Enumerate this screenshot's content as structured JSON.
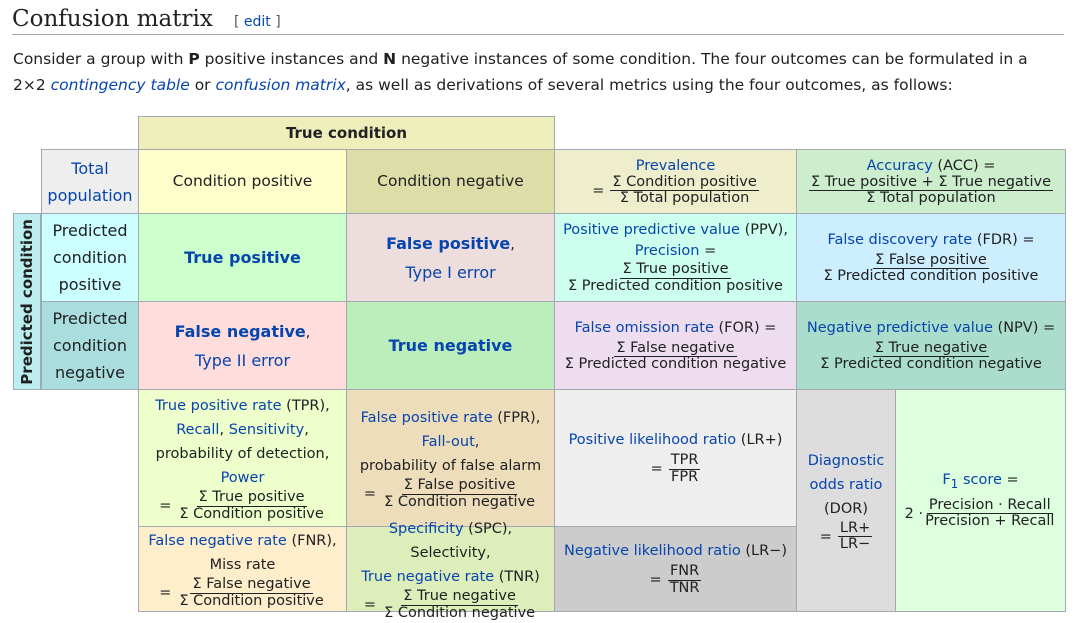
{
  "heading": {
    "title": "Confusion matrix",
    "edit_open": "[ ",
    "edit_label": "edit",
    "edit_close": " ]"
  },
  "intro": {
    "p1": "Consider a group with ",
    "P": "P",
    "p2": " positive instances and ",
    "N": "N",
    "p3": " negative instances of some condition. The four outcomes can be formulated in a 2×2 ",
    "link1": "contingency table",
    "p4": " or ",
    "link2": "confusion matrix",
    "p5": ", as well as derivations of several metrics using the four outcomes, as follows:"
  },
  "table": {
    "true_condition": "True condition",
    "predicted_condition": "Predicted condition",
    "total_population_1": "Total",
    "total_population_2": "population",
    "condition_positive": "Condition positive",
    "condition_negative": "Condition negative",
    "prevalence": {
      "label": "Prevalence",
      "eq": "=",
      "num": "Σ Condition positive",
      "den": "Σ Total population"
    },
    "accuracy": {
      "label": "Accuracy",
      "suffix": " (ACC) =",
      "num": "Σ True positive + Σ True negative",
      "den": "Σ Total population"
    },
    "pred_pos_1": "Predicted",
    "pred_pos_2": "condition",
    "pred_pos_3": "positive",
    "pred_neg_1": "Predicted",
    "pred_neg_2": "condition",
    "pred_neg_3": "negative",
    "true_positive": "True positive",
    "false_positive": "False positive",
    "false_positive_comma": ",",
    "type1": "Type I error",
    "false_negative": "False negative",
    "false_negative_comma": ",",
    "type2": "Type II error",
    "true_negative": "True negative",
    "ppv": {
      "label": "Positive predictive value",
      "suffix": " (PPV),",
      "label2": "Precision",
      "eq2": " =",
      "num": "Σ True positive",
      "den": "Σ Predicted condition positive"
    },
    "fdr": {
      "label": "False discovery rate",
      "suffix": " (FDR) =",
      "num": "Σ False positive",
      "den": "Σ Predicted condition positive"
    },
    "for": {
      "label": "False omission rate",
      "suffix": " (FOR) =",
      "num": "Σ False negative",
      "den": "Σ Predicted condition negative"
    },
    "npv": {
      "label": "Negative predictive value",
      "suffix": " (NPV) =",
      "num": "Σ True negative",
      "den": "Σ Predicted condition negative"
    },
    "tpr": {
      "l1": "True positive rate",
      "s1": " (TPR),",
      "l2": "Recall",
      "c": ", ",
      "l3": "Sensitivity",
      "s3": ",",
      "t4": "probability of detection,",
      "l5": "Power",
      "eq": "=",
      "num": "Σ True positive",
      "den": "Σ Condition positive"
    },
    "fpr": {
      "l1": "False positive rate",
      "s1": " (FPR),",
      "l2": "Fall-out",
      "s2": ",",
      "t3": "probability of false alarm",
      "eq": "=",
      "num": "Σ False positive",
      "den": "Σ Condition negative"
    },
    "lrp": {
      "label": "Positive likelihood ratio",
      "suffix": " (LR+)",
      "eq": "=",
      "num": "TPR",
      "den": "FPR"
    },
    "dor": {
      "l1": "Diagnostic",
      "l2": "odds ratio",
      "l3": "(DOR)",
      "eq": "=",
      "num": "LR+",
      "den": "LR−"
    },
    "f1": {
      "label": "F",
      "sub": "1",
      "label2": " score",
      "suffix": " =",
      "pre": "2 · ",
      "num": "Precision · Recall",
      "den": "Precision + Recall"
    },
    "fnr": {
      "l1": "False negative rate",
      "s1": " (FNR),",
      "t2": "Miss rate",
      "eq": "=",
      "num": "Σ False negative",
      "den": "Σ Condition positive"
    },
    "tnr": {
      "l1": "Specificity",
      "s1": " (SPC), Selectivity,",
      "l2": "True negative rate",
      "s2": " (TNR)",
      "eq": "=",
      "num": "Σ True negative",
      "den": "Σ Condition negative"
    },
    "lrn": {
      "label": "Negative likelihood ratio",
      "suffix": " (LR−)",
      "eq": "=",
      "num": "FNR",
      "den": "TNR"
    }
  },
  "colors": {
    "true_condition_bg": "#eeeebb",
    "predicted_condition_bg": "#bbeeee",
    "total_population_bg": "#eeeeee",
    "condition_positive_bg": "#ffffcc",
    "condition_negative_bg": "#dddda8",
    "prevalence_bg": "#eeeecc",
    "accuracy_bg": "#cceecc",
    "pred_pos_bg": "#ccffff",
    "pred_neg_bg": "#aadddd",
    "true_positive_bg": "#ccffcc",
    "false_positive_bg": "#eedddd",
    "false_negative_bg": "#ffdddd",
    "true_negative_bg": "#bbeebb",
    "ppv_bg": "#ccffee",
    "fdr_bg": "#cceeff",
    "for_bg": "#eeddee",
    "npv_bg": "#aaddcc",
    "tpr_bg": "#eeffcc",
    "fpr_bg": "#eeddbb",
    "lr_bg": "#dddddd",
    "dor_bg": "#dddddd",
    "f1_bg": "#ddffdd",
    "fnr_bg": "#ffeecc",
    "tnr_bg": "#ddeebb",
    "lrn_bg": "#cccccc"
  }
}
